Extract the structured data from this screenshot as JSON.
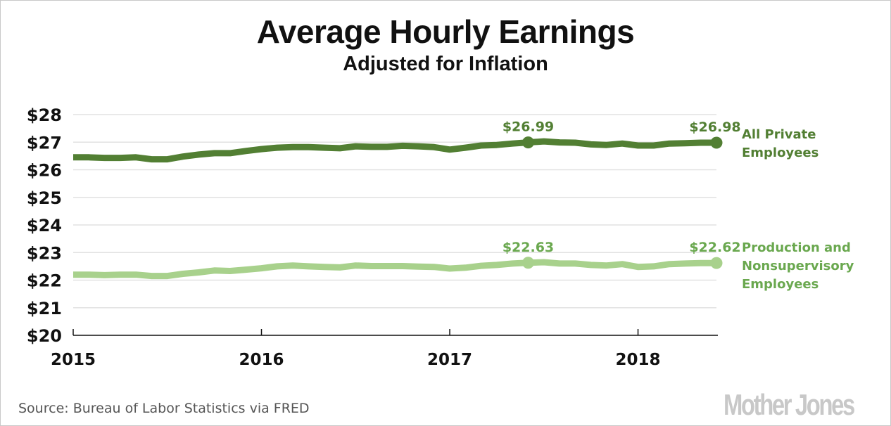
{
  "chart_data": {
    "type": "line",
    "title": "Average Hourly Earnings",
    "subtitle": "Adjusted for Inflation",
    "xlabel": "",
    "ylabel": "",
    "ylim": [
      20,
      28
    ],
    "y_ticks": [
      "$20",
      "$21",
      "$22",
      "$23",
      "$24",
      "$25",
      "$26",
      "$27",
      "$28"
    ],
    "y_tick_values": [
      20,
      21,
      22,
      23,
      24,
      25,
      26,
      27,
      28
    ],
    "x_ticks": [
      "2015",
      "2016",
      "2017",
      "2018"
    ],
    "x_tick_values": [
      0,
      12,
      24,
      36
    ],
    "x_unit": "months since Jan 2015",
    "xlim": [
      0,
      41
    ],
    "grid": true,
    "series": [
      {
        "name": "All Private Employees",
        "legend_lines": [
          "All Private",
          "Employees"
        ],
        "color": "#527f33",
        "values": [
          26.45,
          26.45,
          26.43,
          26.43,
          26.45,
          26.38,
          26.38,
          26.48,
          26.55,
          26.6,
          26.6,
          26.68,
          26.75,
          26.8,
          26.82,
          26.82,
          26.8,
          26.78,
          26.85,
          26.83,
          26.83,
          26.87,
          26.85,
          26.82,
          26.73,
          26.8,
          26.88,
          26.9,
          26.95,
          26.99,
          27.03,
          26.99,
          26.98,
          26.92,
          26.9,
          26.95,
          26.88,
          26.88,
          26.95,
          26.96,
          26.98,
          26.98
        ],
        "annotations": [
          {
            "index": 29,
            "label": "$26.99"
          },
          {
            "index": 41,
            "label": "$26.98"
          }
        ]
      },
      {
        "name": "Production and Nonsupervisory Employees",
        "legend_lines": [
          "Production and",
          "Nonsupervisory",
          "Employees"
        ],
        "color": "#a8d18c",
        "label_color": "#6aa84f",
        "values": [
          22.2,
          22.2,
          22.18,
          22.2,
          22.2,
          22.15,
          22.15,
          22.23,
          22.28,
          22.35,
          22.33,
          22.38,
          22.43,
          22.5,
          22.53,
          22.5,
          22.48,
          22.46,
          22.53,
          22.51,
          22.51,
          22.51,
          22.49,
          22.48,
          22.42,
          22.45,
          22.52,
          22.55,
          22.6,
          22.63,
          22.65,
          22.6,
          22.6,
          22.55,
          22.53,
          22.58,
          22.48,
          22.5,
          22.58,
          22.6,
          22.62,
          22.62
        ],
        "annotations": [
          {
            "index": 29,
            "label": "$22.63"
          },
          {
            "index": 41,
            "label": "$22.62"
          }
        ]
      }
    ]
  },
  "footer": {
    "source": "Source: Bureau of Labor Statistics via FRED",
    "logo_text": "Mother Jones"
  }
}
